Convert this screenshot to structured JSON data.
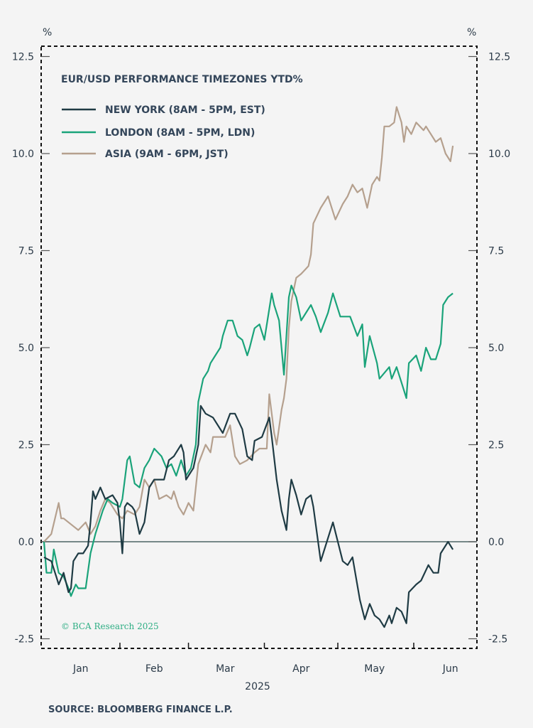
{
  "chart_data": {
    "type": "line",
    "title": "EUR/USD PERFORMANCE TIMEZONES YTD%",
    "ylabel_left": "%",
    "ylabel_right": "%",
    "xlabel": "2025",
    "x_units": "day of year 2025 (0 = Jan 1)",
    "xlim": [
      0,
      177
    ],
    "ylim": [
      -2.75,
      13
    ],
    "yticks": [
      12.5,
      10.0,
      7.5,
      5.0,
      2.5,
      0.0,
      -2.5
    ],
    "ytick_labels": [
      "12.5",
      "10.0",
      "7.5",
      "5.0",
      "2.5",
      "0.0",
      "-2.5"
    ],
    "month_labels": [
      {
        "label": "Jan",
        "day": 15
      },
      {
        "label": "Feb",
        "day": 45
      },
      {
        "label": "Mar",
        "day": 74
      },
      {
        "label": "Apr",
        "day": 105
      },
      {
        "label": "May",
        "day": 135
      },
      {
        "label": "Jun",
        "day": 166
      }
    ],
    "month_boundaries": [
      31,
      59,
      90,
      120,
      151
    ],
    "legend_placement": "top-left",
    "grid": false,
    "reference_line": 0,
    "series": [
      {
        "name": "NEW YORK (8AM - 5PM, EST)",
        "color": "#1f3b44",
        "points": [
          [
            0,
            -0.4
          ],
          [
            3,
            -0.5
          ],
          [
            5,
            -0.9
          ],
          [
            6,
            -1.1
          ],
          [
            8,
            -0.8
          ],
          [
            10,
            -1.3
          ],
          [
            11,
            -1.2
          ],
          [
            12,
            -0.5
          ],
          [
            14,
            -0.3
          ],
          [
            16,
            -0.3
          ],
          [
            18,
            -0.1
          ],
          [
            19,
            0.5
          ],
          [
            20,
            1.3
          ],
          [
            21,
            1.1
          ],
          [
            23,
            1.4
          ],
          [
            25,
            1.1
          ],
          [
            28,
            1.2
          ],
          [
            30,
            1.0
          ],
          [
            31,
            0.5
          ],
          [
            32,
            -0.3
          ],
          [
            33,
            0.9
          ],
          [
            34,
            1.0
          ],
          [
            36,
            0.9
          ],
          [
            37,
            0.8
          ],
          [
            39,
            0.2
          ],
          [
            41,
            0.5
          ],
          [
            43,
            1.4
          ],
          [
            45,
            1.6
          ],
          [
            47,
            1.6
          ],
          [
            49,
            1.6
          ],
          [
            51,
            2.1
          ],
          [
            53,
            2.2
          ],
          [
            56,
            2.5
          ],
          [
            57,
            2.3
          ],
          [
            58,
            1.6
          ],
          [
            61,
            1.9
          ],
          [
            63,
            2.5
          ],
          [
            64,
            3.5
          ],
          [
            66,
            3.3
          ],
          [
            69,
            3.2
          ],
          [
            73,
            2.8
          ],
          [
            76,
            3.3
          ],
          [
            78,
            3.3
          ],
          [
            81,
            2.9
          ],
          [
            83,
            2.2
          ],
          [
            85,
            2.1
          ],
          [
            86,
            2.6
          ],
          [
            89,
            2.7
          ],
          [
            92,
            3.2
          ],
          [
            93,
            2.7
          ],
          [
            95,
            1.6
          ],
          [
            97,
            0.8
          ],
          [
            99,
            0.3
          ],
          [
            100,
            1.1
          ],
          [
            101,
            1.6
          ],
          [
            103,
            1.2
          ],
          [
            105,
            0.7
          ],
          [
            107,
            1.1
          ],
          [
            109,
            1.2
          ],
          [
            110,
            0.9
          ],
          [
            113,
            -0.5
          ],
          [
            115,
            -0.1
          ],
          [
            118,
            0.5
          ],
          [
            122,
            -0.5
          ],
          [
            124,
            -0.6
          ],
          [
            126,
            -0.4
          ],
          [
            129,
            -1.5
          ],
          [
            131,
            -2.0
          ],
          [
            133,
            -1.6
          ],
          [
            135,
            -1.9
          ],
          [
            137,
            -2.0
          ],
          [
            139,
            -2.2
          ],
          [
            141,
            -1.9
          ],
          [
            142,
            -2.1
          ],
          [
            144,
            -1.7
          ],
          [
            146,
            -1.8
          ],
          [
            148,
            -2.1
          ],
          [
            149,
            -1.3
          ],
          [
            152,
            -1.1
          ],
          [
            154,
            -1.0
          ],
          [
            157,
            -0.6
          ],
          [
            159,
            -0.8
          ],
          [
            161,
            -0.8
          ],
          [
            162,
            -0.3
          ],
          [
            165,
            0.0
          ],
          [
            167,
            -0.2
          ]
        ]
      },
      {
        "name": "LONDON (8AM - 5PM, LDN)",
        "color": "#1aa37a",
        "points": [
          [
            0,
            0.0
          ],
          [
            1,
            -0.8
          ],
          [
            3,
            -0.8
          ],
          [
            4,
            -0.2
          ],
          [
            6,
            -0.8
          ],
          [
            8,
            -0.9
          ],
          [
            10,
            -1.2
          ],
          [
            11,
            -1.4
          ],
          [
            13,
            -1.1
          ],
          [
            14,
            -1.2
          ],
          [
            17,
            -1.2
          ],
          [
            19,
            -0.3
          ],
          [
            21,
            0.2
          ],
          [
            24,
            0.8
          ],
          [
            26,
            1.1
          ],
          [
            28,
            1.0
          ],
          [
            31,
            0.9
          ],
          [
            32,
            1.1
          ],
          [
            34,
            2.1
          ],
          [
            35,
            2.2
          ],
          [
            37,
            1.5
          ],
          [
            39,
            1.4
          ],
          [
            41,
            1.9
          ],
          [
            43,
            2.1
          ],
          [
            45,
            2.4
          ],
          [
            48,
            2.2
          ],
          [
            50,
            1.9
          ],
          [
            52,
            2.0
          ],
          [
            54,
            1.7
          ],
          [
            56,
            2.1
          ],
          [
            58,
            1.7
          ],
          [
            60,
            1.9
          ],
          [
            62,
            2.5
          ],
          [
            63,
            3.6
          ],
          [
            65,
            4.2
          ],
          [
            67,
            4.4
          ],
          [
            68,
            4.6
          ],
          [
            70,
            4.8
          ],
          [
            72,
            5.0
          ],
          [
            73,
            5.3
          ],
          [
            75,
            5.7
          ],
          [
            77,
            5.7
          ],
          [
            79,
            5.3
          ],
          [
            81,
            5.2
          ],
          [
            83,
            4.8
          ],
          [
            84,
            5.0
          ],
          [
            86,
            5.5
          ],
          [
            88,
            5.6
          ],
          [
            90,
            5.2
          ],
          [
            93,
            6.4
          ],
          [
            94,
            6.1
          ],
          [
            96,
            5.7
          ],
          [
            98,
            4.3
          ],
          [
            100,
            6.3
          ],
          [
            101,
            6.6
          ],
          [
            103,
            6.3
          ],
          [
            105,
            5.7
          ],
          [
            107,
            5.9
          ],
          [
            109,
            6.1
          ],
          [
            111,
            5.8
          ],
          [
            113,
            5.4
          ],
          [
            116,
            5.9
          ],
          [
            118,
            6.4
          ],
          [
            121,
            5.8
          ],
          [
            125,
            5.8
          ],
          [
            128,
            5.3
          ],
          [
            130,
            5.6
          ],
          [
            131,
            4.5
          ],
          [
            133,
            5.3
          ],
          [
            136,
            4.6
          ],
          [
            137,
            4.2
          ],
          [
            141,
            4.5
          ],
          [
            142,
            4.2
          ],
          [
            144,
            4.5
          ],
          [
            146,
            4.1
          ],
          [
            148,
            3.7
          ],
          [
            149,
            4.6
          ],
          [
            152,
            4.8
          ],
          [
            154,
            4.4
          ],
          [
            156,
            5.0
          ],
          [
            158,
            4.7
          ],
          [
            160,
            4.7
          ],
          [
            162,
            5.1
          ],
          [
            163,
            6.1
          ],
          [
            165,
            6.3
          ],
          [
            167,
            6.4
          ]
        ]
      },
      {
        "name": "ASIA (9AM - 6PM, JST)",
        "color": "#b5a08e",
        "points": [
          [
            0,
            0.0
          ],
          [
            3,
            0.2
          ],
          [
            6,
            1.0
          ],
          [
            7,
            0.6
          ],
          [
            8,
            0.6
          ],
          [
            10,
            0.5
          ],
          [
            12,
            0.4
          ],
          [
            14,
            0.3
          ],
          [
            17,
            0.5
          ],
          [
            19,
            0.2
          ],
          [
            21,
            0.4
          ],
          [
            23,
            0.8
          ],
          [
            25,
            1.1
          ],
          [
            27,
            1.0
          ],
          [
            30,
            0.7
          ],
          [
            32,
            0.6
          ],
          [
            34,
            0.8
          ],
          [
            37,
            0.7
          ],
          [
            39,
            0.9
          ],
          [
            41,
            1.6
          ],
          [
            43,
            1.4
          ],
          [
            45,
            1.6
          ],
          [
            47,
            1.1
          ],
          [
            50,
            1.2
          ],
          [
            52,
            1.1
          ],
          [
            53,
            1.3
          ],
          [
            55,
            0.9
          ],
          [
            57,
            0.7
          ],
          [
            59,
            1.0
          ],
          [
            61,
            0.8
          ],
          [
            62,
            1.4
          ],
          [
            63,
            2.0
          ],
          [
            66,
            2.5
          ],
          [
            68,
            2.3
          ],
          [
            69,
            2.7
          ],
          [
            71,
            2.7
          ],
          [
            74,
            2.7
          ],
          [
            76,
            3.0
          ],
          [
            78,
            2.2
          ],
          [
            80,
            2.0
          ],
          [
            83,
            2.1
          ],
          [
            86,
            2.3
          ],
          [
            88,
            2.4
          ],
          [
            91,
            2.4
          ],
          [
            92,
            3.8
          ],
          [
            94,
            2.8
          ],
          [
            95,
            2.5
          ],
          [
            97,
            3.4
          ],
          [
            98,
            3.7
          ],
          [
            99,
            4.2
          ],
          [
            100,
            5.5
          ],
          [
            101,
            6.2
          ],
          [
            103,
            6.8
          ],
          [
            105,
            6.9
          ],
          [
            108,
            7.1
          ],
          [
            109,
            7.4
          ],
          [
            110,
            8.2
          ],
          [
            113,
            8.6
          ],
          [
            116,
            8.9
          ],
          [
            119,
            8.3
          ],
          [
            122,
            8.7
          ],
          [
            124,
            8.9
          ],
          [
            126,
            9.2
          ],
          [
            128,
            9.0
          ],
          [
            130,
            9.1
          ],
          [
            132,
            8.6
          ],
          [
            134,
            9.2
          ],
          [
            136,
            9.4
          ],
          [
            137,
            9.3
          ],
          [
            138,
            9.9
          ],
          [
            139,
            10.7
          ],
          [
            141,
            10.7
          ],
          [
            143,
            10.8
          ],
          [
            144,
            11.2
          ],
          [
            146,
            10.8
          ],
          [
            147,
            10.3
          ],
          [
            148,
            10.7
          ],
          [
            150,
            10.5
          ],
          [
            152,
            10.8
          ],
          [
            155,
            10.6
          ],
          [
            156,
            10.7
          ],
          [
            158,
            10.5
          ],
          [
            160,
            10.3
          ],
          [
            162,
            10.4
          ],
          [
            164,
            10.0
          ],
          [
            166,
            9.8
          ],
          [
            167,
            10.2
          ]
        ]
      }
    ],
    "annotation": "© BCA Research 2025",
    "source": "SOURCE: BLOOMBERG FINANCE L.P."
  }
}
